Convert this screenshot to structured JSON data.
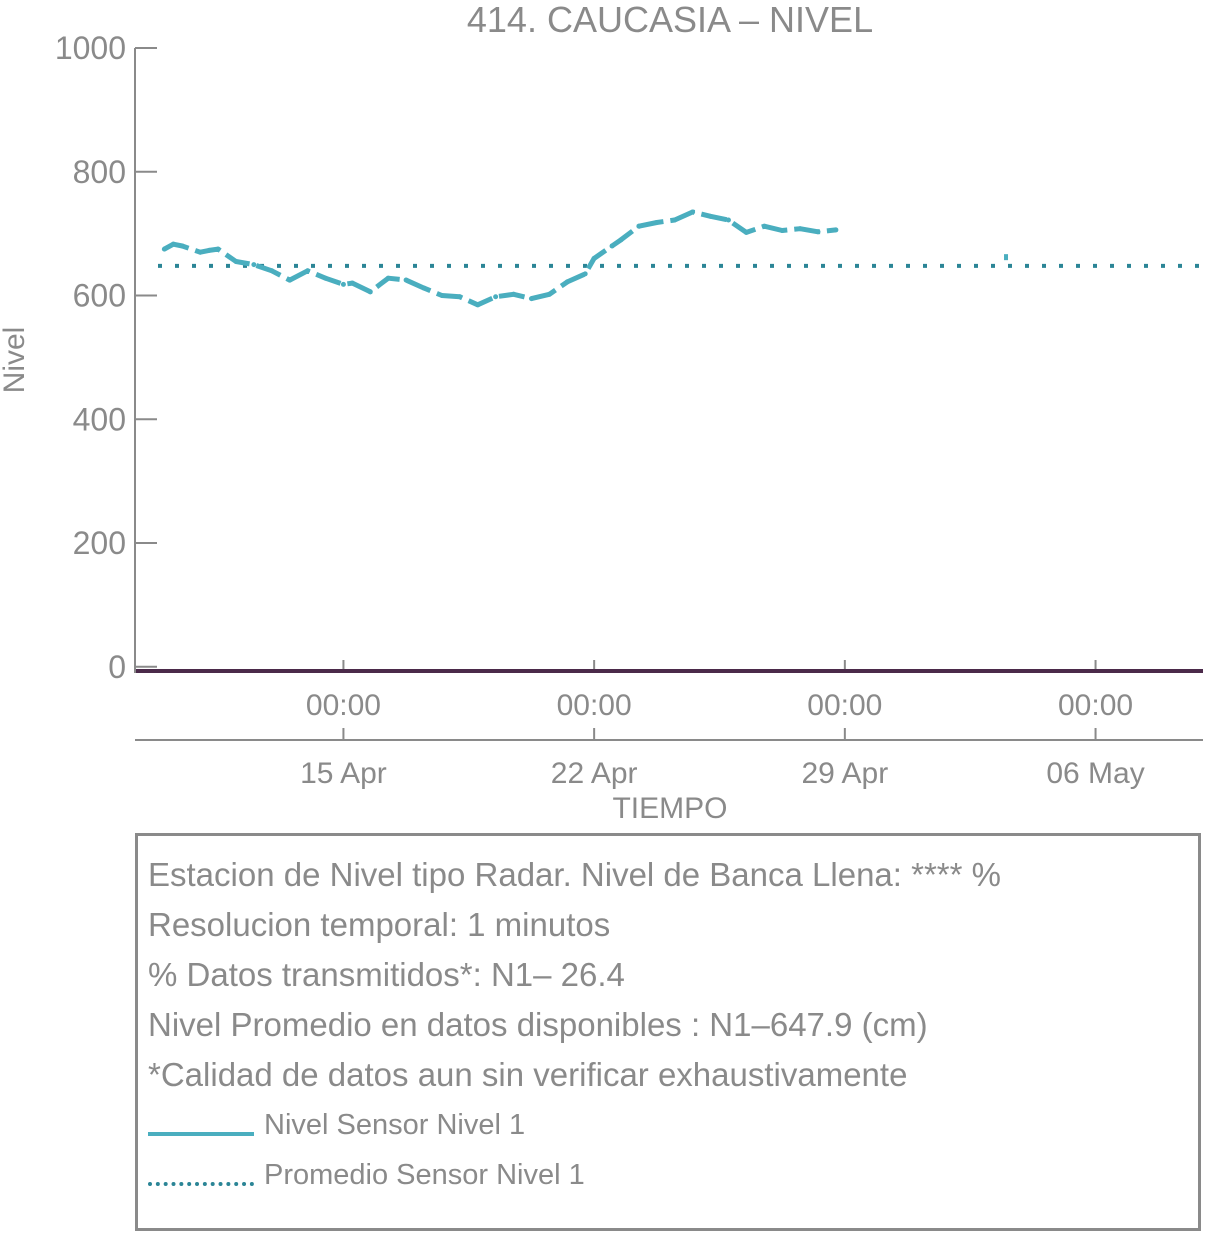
{
  "chart_data": {
    "type": "line",
    "title": "414. CAUCASIA – NIVEL",
    "xlabel": "TIEMPO",
    "ylabel": "Nivel",
    "ylim": [
      -10,
      1000
    ],
    "yticks": [
      0,
      200,
      400,
      600,
      800,
      1000
    ],
    "xlim": [
      "2025-04-09 05:00",
      "2025-05-09 00:00"
    ],
    "x_ticks": [
      {
        "date": "2025-04-15 00:00",
        "time": "00:00",
        "day": "15 Apr"
      },
      {
        "date": "2025-04-22 00:00",
        "time": "00:00",
        "day": "22 Apr"
      },
      {
        "date": "2025-04-29 00:00",
        "time": "00:00",
        "day": "29 Apr"
      },
      {
        "date": "2025-05-06 00:00",
        "time": "00:00",
        "day": "06 May"
      }
    ],
    "series": [
      {
        "name": "Nivel Sensor Nivel 1",
        "color": "#4aaebf",
        "style": "solid",
        "points": [
          [
            "2025-04-10 00:00",
            675
          ],
          [
            "2025-04-10 06:00",
            683
          ],
          [
            "2025-04-10 12:00",
            680
          ],
          [
            "2025-04-11 00:00",
            670
          ],
          [
            "2025-04-11 06:00",
            673
          ],
          [
            "2025-04-11 12:00",
            675
          ],
          [
            "2025-04-12 00:00",
            655
          ],
          [
            "2025-04-12 12:00",
            650
          ],
          [
            "2025-04-13 00:00",
            640
          ],
          [
            "2025-04-13 12:00",
            625
          ],
          [
            "2025-04-14 00:00",
            640
          ],
          [
            "2025-04-14 12:00",
            628
          ],
          [
            "2025-04-15 00:00",
            618
          ],
          [
            "2025-04-15 06:00",
            620
          ],
          [
            "2025-04-15 18:00",
            606
          ],
          [
            "2025-04-16 06:00",
            628
          ],
          [
            "2025-04-16 18:00",
            625
          ],
          [
            "2025-04-17 06:00",
            612
          ],
          [
            "2025-04-17 18:00",
            600
          ],
          [
            "2025-04-18 06:00",
            598
          ],
          [
            "2025-04-18 18:00",
            585
          ],
          [
            "2025-04-19 06:00",
            598
          ],
          [
            "2025-04-19 18:00",
            602
          ],
          [
            "2025-04-20 06:00",
            595
          ],
          [
            "2025-04-20 18:00",
            602
          ],
          [
            "2025-04-21 06:00",
            622
          ],
          [
            "2025-04-21 18:00",
            635
          ],
          [
            "2025-04-22 00:00",
            660
          ],
          [
            "2025-04-22 12:00",
            680
          ],
          [
            "2025-04-22 18:00",
            690
          ],
          [
            "2025-04-23 06:00",
            712
          ],
          [
            "2025-04-23 18:00",
            718
          ],
          [
            "2025-04-24 06:00",
            722
          ],
          [
            "2025-04-24 18:00",
            735
          ],
          [
            "2025-04-25 06:00",
            728
          ],
          [
            "2025-04-25 18:00",
            722
          ],
          [
            "2025-04-26 06:00",
            702
          ],
          [
            "2025-04-26 18:00",
            712
          ],
          [
            "2025-04-27 06:00",
            705
          ],
          [
            "2025-04-27 18:00",
            708
          ],
          [
            "2025-04-28 06:00",
            703
          ],
          [
            "2025-04-28 18:00",
            706
          ],
          [
            "2025-05-03 12:00",
            662
          ]
        ]
      },
      {
        "name": "Promedio Sensor Nivel 1",
        "color": "#2b8596",
        "style": "dotted",
        "value": 647.9
      }
    ],
    "baseline_color": "#4b2a4a"
  },
  "info": {
    "lines": [
      "Estacion de Nivel tipo Radar. Nivel de Banca Llena: **** %",
      "Resolucion temporal: 1 minutos",
      "% Datos transmitidos*: N1– 26.4",
      "Nivel Promedio en datos disponibles : N1–647.9 (cm)",
      "*Calidad de datos aun sin verificar exhaustivamente"
    ]
  },
  "legend": [
    {
      "label": "Nivel Sensor Nivel 1",
      "style": "solid",
      "color": "#4aaebf"
    },
    {
      "label": "Promedio Sensor Nivel 1",
      "style": "dotted",
      "color": "#2b8596"
    }
  ]
}
